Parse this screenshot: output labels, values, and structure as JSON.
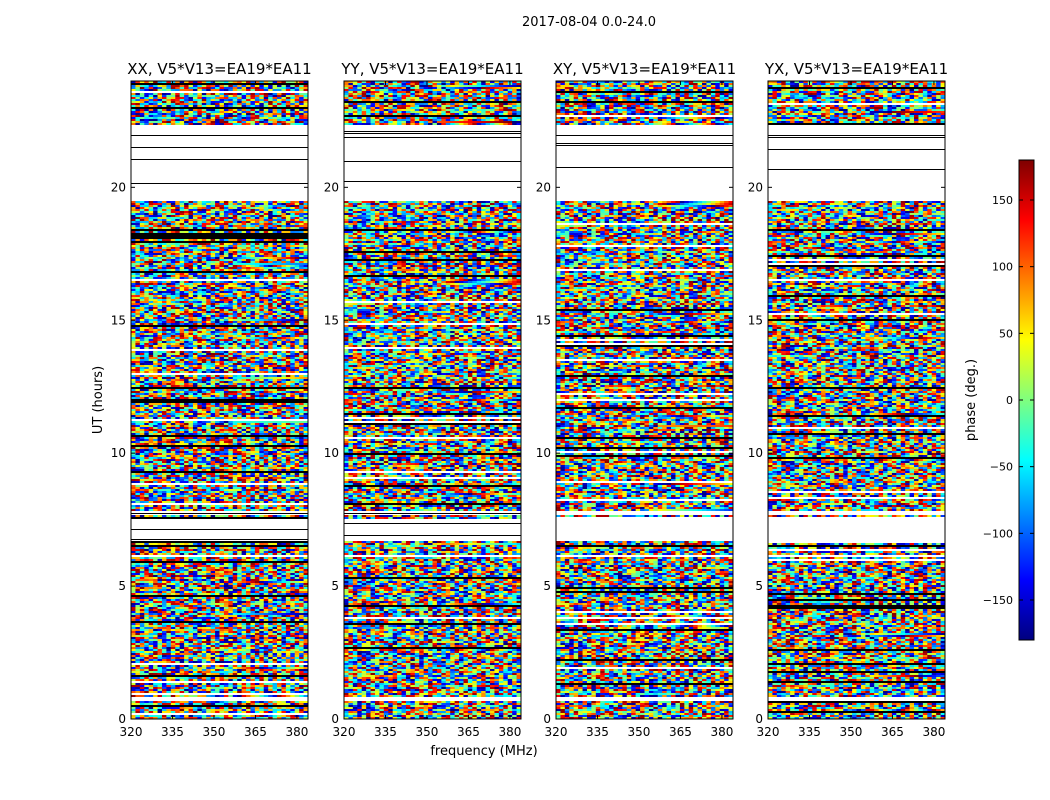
{
  "chart_data": {
    "type": "heatmap",
    "title": "2017-08-04 0.0-24.0",
    "xlabel": "frequency (MHz)",
    "ylabel": "UT (hours)",
    "xlim": [
      320,
      384
    ],
    "ylim": [
      0,
      24
    ],
    "xticks": [
      320,
      335,
      350,
      365,
      380
    ],
    "yticks": [
      0,
      5,
      10,
      15,
      20
    ],
    "panels": [
      {
        "title": "XX, V5*V13=EA19*EA11"
      },
      {
        "title": "YY, V5*V13=EA19*EA11"
      },
      {
        "title": "XY, V5*V13=EA19*EA11"
      },
      {
        "title": "YX, V5*V13=EA19*EA11"
      }
    ],
    "colorbar": {
      "label": "phase (deg.)",
      "range": [
        -180,
        180
      ],
      "ticks": [
        -150,
        -100,
        -50,
        0,
        50,
        100,
        150
      ],
      "colormap": [
        "#00007f",
        "#0000ff",
        "#007fff",
        "#00ffff",
        "#7fff7f",
        "#ffff00",
        "#ff7f00",
        "#ff0000",
        "#7f0000"
      ]
    },
    "blank_ut_intervals": [
      [
        0.65,
        0.85
      ],
      [
        6.1,
        6.2
      ],
      [
        6.7,
        7.5
      ],
      [
        7.7,
        7.85
      ],
      [
        19.5,
        21.8
      ],
      [
        22.1,
        22.35
      ]
    ],
    "mostly_flagged_ut_intervals": [
      [
        21.8,
        22.1
      ]
    ]
  }
}
